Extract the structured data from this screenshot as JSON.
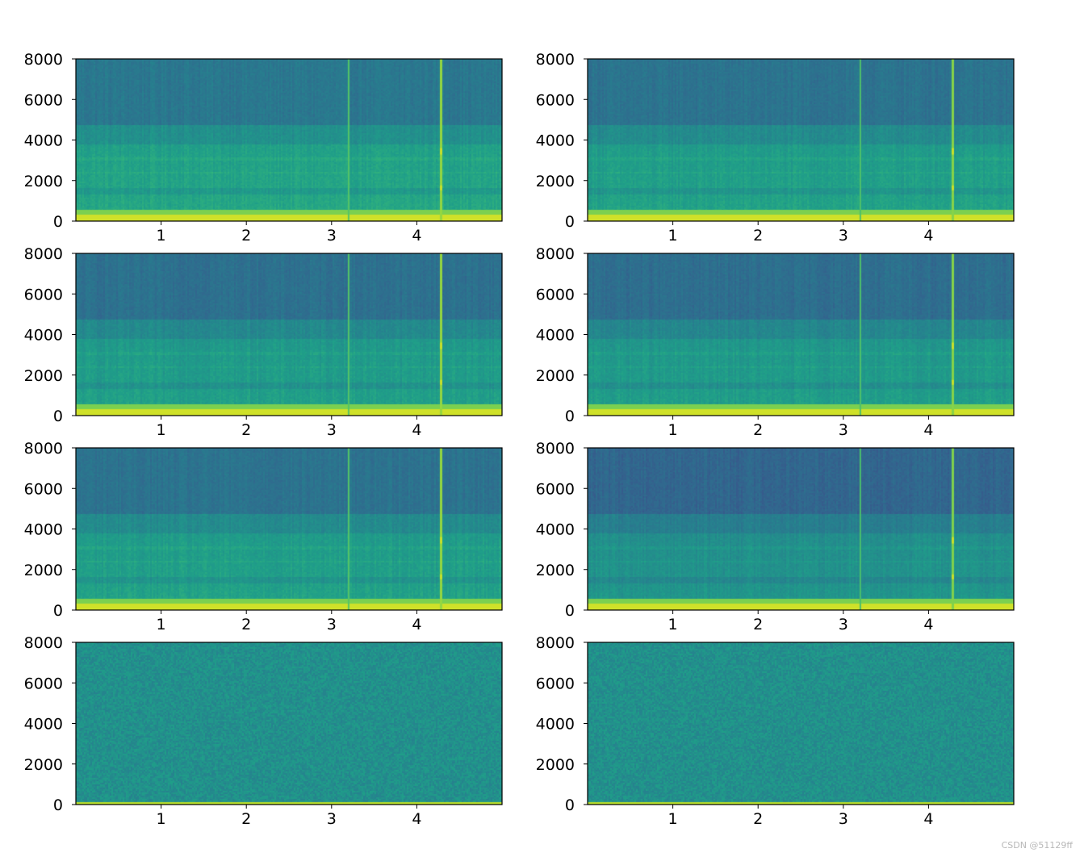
{
  "watermark": "CSDN @51129ff",
  "chart_data": [
    {
      "type": "heatmap",
      "kind": "spectrogram",
      "position": "row-1-left",
      "x_ticks": [
        1,
        2,
        3,
        4
      ],
      "y_ticks": [
        0,
        2000,
        4000,
        6000,
        8000
      ],
      "xlim": [
        0,
        5
      ],
      "ylim": [
        0,
        8000
      ],
      "colormap": "viridis",
      "events": [
        {
          "x": 3.2,
          "strength": 0.5
        },
        {
          "x": 4.28,
          "strength": 1.0
        }
      ],
      "noise_only": false,
      "shade": 0.0
    },
    {
      "type": "heatmap",
      "kind": "spectrogram",
      "position": "row-1-right",
      "x_ticks": [
        1,
        2,
        3,
        4
      ],
      "y_ticks": [
        0,
        2000,
        4000,
        6000,
        8000
      ],
      "xlim": [
        0,
        5
      ],
      "ylim": [
        0,
        8000
      ],
      "colormap": "viridis",
      "events": [
        {
          "x": 3.2,
          "strength": 0.45
        },
        {
          "x": 4.28,
          "strength": 0.9
        }
      ],
      "noise_only": false,
      "shade": 0.02
    },
    {
      "type": "heatmap",
      "kind": "spectrogram",
      "position": "row-2-left",
      "x_ticks": [
        1,
        2,
        3,
        4
      ],
      "y_ticks": [
        0,
        2000,
        4000,
        6000,
        8000
      ],
      "xlim": [
        0,
        5
      ],
      "ylim": [
        0,
        8000
      ],
      "colormap": "viridis",
      "events": [
        {
          "x": 3.2,
          "strength": 0.5
        },
        {
          "x": 4.28,
          "strength": 1.0
        }
      ],
      "noise_only": false,
      "shade": 0.03
    },
    {
      "type": "heatmap",
      "kind": "spectrogram",
      "position": "row-2-right",
      "x_ticks": [
        1,
        2,
        3,
        4
      ],
      "y_ticks": [
        0,
        2000,
        4000,
        6000,
        8000
      ],
      "xlim": [
        0,
        5
      ],
      "ylim": [
        0,
        8000
      ],
      "colormap": "viridis",
      "events": [
        {
          "x": 3.2,
          "strength": 0.45
        },
        {
          "x": 4.28,
          "strength": 0.9
        }
      ],
      "noise_only": false,
      "shade": 0.04
    },
    {
      "type": "heatmap",
      "kind": "spectrogram",
      "position": "row-3-left",
      "x_ticks": [
        1,
        2,
        3,
        4
      ],
      "y_ticks": [
        0,
        2000,
        4000,
        6000,
        8000
      ],
      "xlim": [
        0,
        5
      ],
      "ylim": [
        0,
        8000
      ],
      "colormap": "viridis",
      "events": [
        {
          "x": 3.2,
          "strength": 0.5
        },
        {
          "x": 4.28,
          "strength": 1.0
        }
      ],
      "noise_only": false,
      "shade": 0.02
    },
    {
      "type": "heatmap",
      "kind": "spectrogram",
      "position": "row-3-right",
      "x_ticks": [
        1,
        2,
        3,
        4
      ],
      "y_ticks": [
        0,
        2000,
        4000,
        6000,
        8000
      ],
      "xlim": [
        0,
        5
      ],
      "ylim": [
        0,
        8000
      ],
      "colormap": "viridis",
      "events": [
        {
          "x": 3.2,
          "strength": 0.4
        },
        {
          "x": 4.28,
          "strength": 0.85
        }
      ],
      "noise_only": false,
      "shade": 0.07
    },
    {
      "type": "heatmap",
      "kind": "spectrogram",
      "position": "row-4-left",
      "x_ticks": [
        1,
        2,
        3,
        4
      ],
      "y_ticks": [
        0,
        2000,
        4000,
        6000,
        8000
      ],
      "xlim": [
        0,
        5
      ],
      "ylim": [
        0,
        8000
      ],
      "colormap": "viridis",
      "events": [],
      "noise_only": true,
      "shade": 0.0
    },
    {
      "type": "heatmap",
      "kind": "spectrogram",
      "position": "row-4-right",
      "x_ticks": [
        1,
        2,
        3,
        4
      ],
      "y_ticks": [
        0,
        2000,
        4000,
        6000,
        8000
      ],
      "xlim": [
        0,
        5
      ],
      "ylim": [
        0,
        8000
      ],
      "colormap": "viridis",
      "events": [],
      "noise_only": true,
      "shade": 0.0
    }
  ]
}
